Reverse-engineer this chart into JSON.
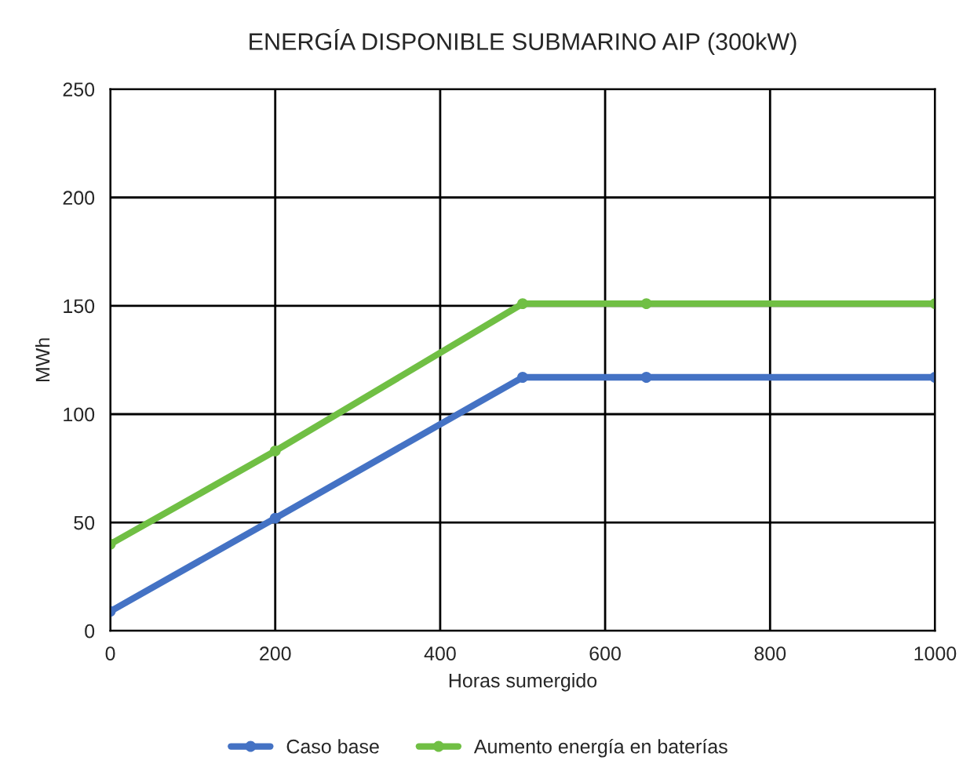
{
  "chart_data": {
    "type": "line",
    "title": "ENERGÍA DISPONIBLE SUBMARINO AIP (300kW)",
    "xlabel": "Horas sumergido",
    "ylabel": "MWh",
    "x": [
      0,
      200,
      500,
      650,
      1000
    ],
    "series": [
      {
        "name": "Caso base",
        "color": "#4472c4",
        "values": [
          9,
          52,
          117,
          117,
          117
        ]
      },
      {
        "name": "Aumento energía en baterías",
        "color": "#70bf44",
        "values": [
          40,
          83,
          151,
          151,
          151
        ]
      }
    ],
    "xlim": [
      0,
      1000
    ],
    "xticks": [
      0,
      200,
      400,
      600,
      800,
      1000
    ],
    "ylim": [
      0,
      250
    ],
    "yticks": [
      0,
      50,
      100,
      150,
      200,
      250
    ],
    "grid": true,
    "legend": "bottom",
    "marker": "circle",
    "line_style": "solid"
  }
}
